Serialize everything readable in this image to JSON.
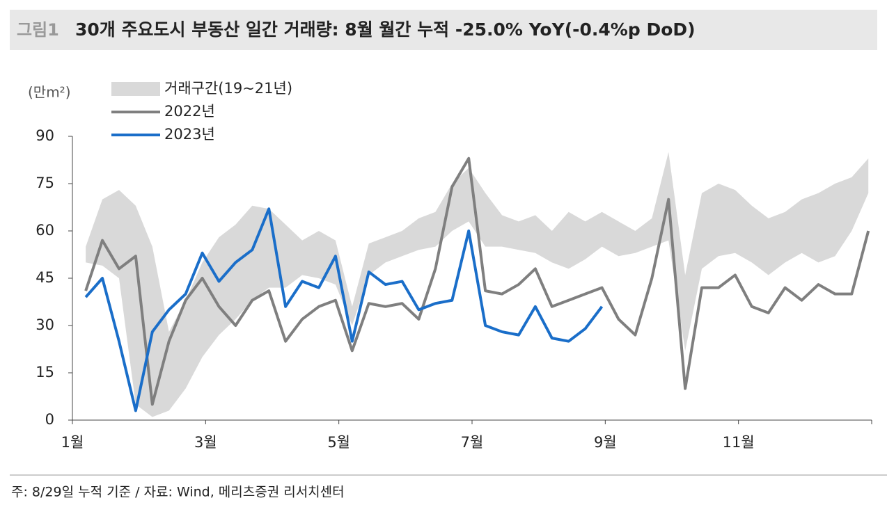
{
  "chart_data": {
    "type": "line",
    "figure_label": "그림1",
    "title": "30개 주요도시 부동산 일간 거래량: 8월 월간 누적 -25.0% YoY(-0.4%p DoD)",
    "y_label": "(만m²)",
    "note": "주: 8/29일 누적 기준 / 자료: Wind, 메리츠증권 리서치센터",
    "xlim": [
      1,
      13
    ],
    "xticks": [
      {
        "value": 1,
        "label": "1월"
      },
      {
        "value": 3,
        "label": "3월"
      },
      {
        "value": 5,
        "label": "5월"
      },
      {
        "value": 7,
        "label": "7월"
      },
      {
        "value": 9,
        "label": "9월"
      },
      {
        "value": 11,
        "label": "11월"
      }
    ],
    "ylim": [
      0,
      90
    ],
    "yticks": [
      0,
      15,
      30,
      45,
      60,
      75,
      90
    ],
    "legend": "top-left",
    "series": [
      {
        "name": "거래구간(19~21년)",
        "color": "#d9d9d9",
        "x": [
          1.2,
          1.45,
          1.7,
          1.95,
          2.2,
          2.45,
          2.7,
          2.95,
          3.2,
          3.45,
          3.7,
          3.95,
          4.2,
          4.45,
          4.7,
          4.95,
          5.2,
          5.45,
          5.7,
          5.95,
          6.2,
          6.45,
          6.7,
          6.95,
          7.2,
          7.45,
          7.7,
          7.95,
          8.2,
          8.45,
          8.7,
          8.95,
          9.2,
          9.45,
          9.7,
          9.95,
          10.2,
          10.45,
          10.7,
          10.95,
          11.2,
          11.45,
          11.7,
          11.95,
          12.2,
          12.45,
          12.7,
          12.95
        ],
        "upper": [
          55,
          70,
          73,
          68,
          55,
          28,
          38,
          50,
          58,
          62,
          68,
          67,
          62,
          57,
          60,
          57,
          36,
          56,
          58,
          60,
          64,
          66,
          75,
          80,
          72,
          65,
          63,
          65,
          60,
          66,
          63,
          66,
          63,
          60,
          64,
          85,
          46,
          72,
          75,
          73,
          68,
          64,
          66,
          70,
          72,
          75,
          77,
          83
        ],
        "lower": [
          50,
          49,
          45,
          5,
          1,
          3,
          10,
          20,
          27,
          32,
          38,
          42,
          42,
          46,
          45,
          43,
          30,
          46,
          50,
          52,
          54,
          55,
          60,
          63,
          55,
          55,
          54,
          53,
          50,
          48,
          51,
          55,
          52,
          53,
          55,
          57,
          22,
          48,
          52,
          53,
          50,
          46,
          50,
          53,
          50,
          52,
          60,
          72
        ]
      },
      {
        "name": "2022년",
        "color": "#7f7f7f",
        "x": [
          1.2,
          1.45,
          1.7,
          1.95,
          2.2,
          2.45,
          2.7,
          2.95,
          3.2,
          3.45,
          3.7,
          3.95,
          4.2,
          4.45,
          4.7,
          4.95,
          5.2,
          5.45,
          5.7,
          5.95,
          6.2,
          6.45,
          6.7,
          6.95,
          7.2,
          7.45,
          7.7,
          7.95,
          8.2,
          8.45,
          8.7,
          8.95,
          9.2,
          9.45,
          9.7,
          9.95,
          10.2,
          10.45,
          10.7,
          10.95,
          11.2,
          11.45,
          11.7,
          11.95,
          12.2,
          12.45,
          12.7,
          12.95
        ],
        "values": [
          41,
          57,
          48,
          52,
          5,
          25,
          38,
          45,
          36,
          30,
          38,
          41,
          25,
          32,
          36,
          38,
          22,
          37,
          36,
          37,
          32,
          48,
          74,
          83,
          41,
          40,
          43,
          48,
          36,
          38,
          40,
          42,
          32,
          27,
          45,
          70,
          10,
          42,
          42,
          46,
          36,
          34,
          42,
          38,
          43,
          40,
          40,
          60
        ]
      },
      {
        "name": "2023년",
        "color": "#1a6ec9",
        "x": [
          1.2,
          1.45,
          1.7,
          1.95,
          2.2,
          2.45,
          2.7,
          2.95,
          3.2,
          3.45,
          3.7,
          3.95,
          4.2,
          4.45,
          4.7,
          4.95,
          5.2,
          5.45,
          5.7,
          5.95,
          6.2,
          6.45,
          6.7,
          6.95,
          7.2,
          7.45,
          7.7,
          7.95,
          8.2,
          8.45,
          8.7,
          8.95
        ],
        "values": [
          39,
          45,
          25,
          3,
          28,
          35,
          40,
          53,
          44,
          50,
          54,
          67,
          36,
          44,
          42,
          52,
          25,
          47,
          43,
          44,
          35,
          37,
          38,
          60,
          30,
          28,
          27,
          36,
          26,
          25,
          29,
          36
        ]
      }
    ]
  }
}
